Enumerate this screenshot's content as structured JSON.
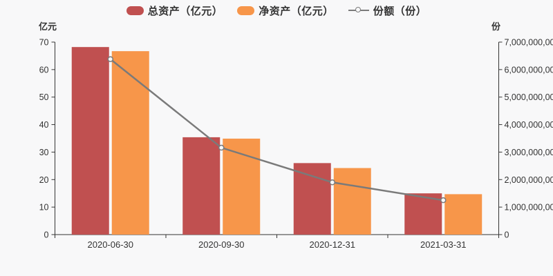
{
  "page": {
    "background": "#f8f8f9"
  },
  "legend": [
    {
      "label": "总资产（亿元）",
      "type": "bar",
      "color": "#c05050"
    },
    {
      "label": "净资产（亿元）",
      "type": "bar",
      "color": "#f7964a"
    },
    {
      "label": "份额（份）",
      "type": "line",
      "color": "#7a7a7a"
    }
  ],
  "chart_data": {
    "type": "bar+line",
    "categories": [
      "2020-06-30",
      "2020-09-30",
      "2020-12-31",
      "2021-03-31"
    ],
    "series": [
      {
        "name": "总资产（亿元）",
        "type": "bar",
        "axis": "left",
        "color": "#c05050",
        "values": [
          68.2,
          35.4,
          26.0,
          15.0
        ]
      },
      {
        "name": "净资产（亿元）",
        "type": "bar",
        "axis": "left",
        "color": "#f7964a",
        "values": [
          66.7,
          34.9,
          24.2,
          14.7
        ]
      },
      {
        "name": "份额（份）",
        "type": "line",
        "axis": "right",
        "color": "#7a7a7a",
        "marker_fill": "#f8f8f9",
        "values": [
          6380000000,
          3160000000,
          1900000000,
          1250000000
        ]
      }
    ],
    "left_axis": {
      "label": "亿元",
      "min": 0,
      "max": 70,
      "step": 10
    },
    "right_axis": {
      "label": "份",
      "min": 0,
      "max": 7000000000,
      "step": 1000000000
    },
    "grid": false,
    "legend_position": "top",
    "axis_color": "#333333",
    "tick_label_color": "#333333"
  }
}
